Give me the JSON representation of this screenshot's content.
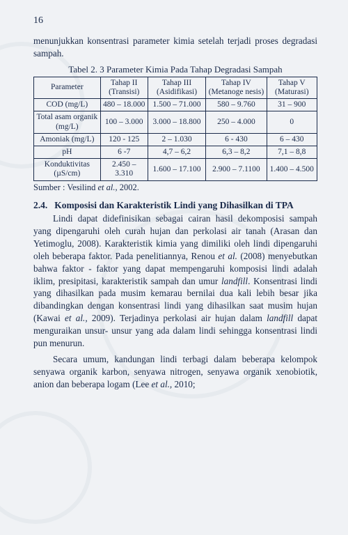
{
  "page_number": "16",
  "intro_para": "menunjukkan konsentrasi parameter kimia setelah terjadi proses degradasi sampah.",
  "table": {
    "caption": "Tabel 2. 3 Parameter Kimia Pada Tahap Degradasi Sampah",
    "headers": [
      "Parameter",
      "Tahap II (Transisi)",
      "Tahap III (Asidifikasi)",
      "Tahap IV (Metanoge nesis)",
      "Tahap V (Maturasi)"
    ],
    "rows": [
      [
        "COD (mg/L)",
        "480 – 18.000",
        "1.500 – 71.000",
        "580 – 9.760",
        "31 – 900"
      ],
      [
        "Total asam organik (mg/L)",
        "100 – 3.000",
        "3.000 – 18.800",
        "250 – 4.000",
        "0"
      ],
      [
        "Amoniak (mg/L)",
        "120 - 125",
        "2 – 1.030",
        "6 - 430",
        "6 – 430"
      ],
      [
        "pH",
        "6 -7",
        "4,7 – 6,2",
        "6,3 – 8,2",
        "7,1 – 8,8"
      ],
      [
        "Konduktivitas (µS/cm)",
        "2.450 – 3.310",
        "1.600 – 17.100",
        "2.900 – 7.1100",
        "1.400 – 4.500"
      ]
    ],
    "source_label": "Sumber : Vesilind ",
    "source_ital": "et al.,",
    "source_year": " 2002."
  },
  "section": {
    "number": "2.4.",
    "title": "Komposisi dan Karakteristik Lindi yang Dihasilkan di TPA"
  },
  "body1_a": "Lindi dapat didefinisikan sebagai cairan hasil dekomposisi sampah yang dipengaruhi oleh curah hujan dan perkolasi air tanah (Arasan dan Yetimoglu, 2008). Karakteristik kimia yang dimiliki oleh lindi dipengaruhi oleh beberapa faktor. Pada penelitiannya, Renou ",
  "body1_b": "et al.",
  "body1_c": " (2008) menyebutkan bahwa faktor - faktor yang dapat mempengaruhi komposisi lindi  adalah iklim, presipitasi, karakteristik sampah  dan umur ",
  "body1_d": "landfill",
  "body1_e": ". Konsentrasi lindi yang dihasilkan pada musim kemarau bernilai dua kali lebih besar jika dibandingkan dengan konsentrasi lindi yang dihasilkan saat musim hujan (Kawai ",
  "body1_f": "et al.,",
  "body1_g": " 2009). Terjadinya perkolasi air hujan dalam  ",
  "body1_h": "landfill",
  "body1_i": " dapat menguraikan unsur- unsur yang ada dalam lindi sehingga konsentrasi lindi pun menurun.",
  "body2_a": "Secara umum, kandungan lindi terbagi dalam beberapa kelompok senyawa organik karbon, senyawa nitrogen, senyawa organik xenobiotik, anion dan beberapa logam (Lee ",
  "body2_b": "et al.,",
  "body2_c": " 2010;"
}
